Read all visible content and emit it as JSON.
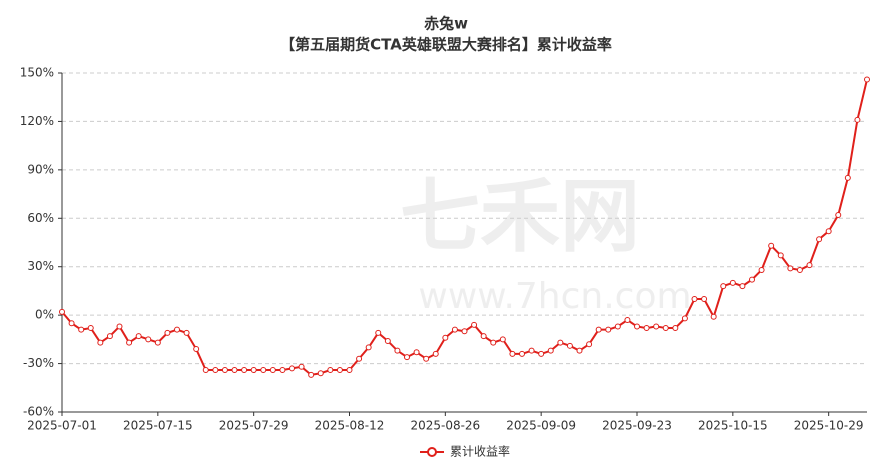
{
  "chart_data": {
    "type": "line",
    "title": "赤兔w",
    "subtitle": "【第五届期货CTA英雄联盟大赛排名】累计收益率",
    "watermark": [
      "七禾网",
      "www.7hcn.com"
    ],
    "categories": [
      "2025-07-01",
      null,
      null,
      null,
      null,
      null,
      null,
      null,
      null,
      null,
      "2025-07-15",
      null,
      null,
      null,
      null,
      null,
      null,
      null,
      null,
      null,
      "2025-07-29",
      null,
      null,
      null,
      null,
      null,
      null,
      null,
      null,
      null,
      "2025-08-12",
      null,
      null,
      null,
      null,
      null,
      null,
      null,
      null,
      null,
      "2025-08-26",
      null,
      null,
      null,
      null,
      null,
      null,
      null,
      null,
      null,
      "2025-09-09",
      null,
      null,
      null,
      null,
      null,
      null,
      null,
      null,
      null,
      "2025-09-23",
      null,
      null,
      null,
      null,
      null,
      null,
      null,
      null,
      null,
      "2025-10-15",
      null,
      null,
      null,
      null,
      null,
      null,
      null,
      null,
      null,
      "2025-10-29",
      null,
      null,
      null,
      null
    ],
    "series": [
      {
        "name": "累计收益率",
        "color": "#e0201b",
        "values": [
          2,
          -5,
          -9,
          -8,
          -17,
          -13,
          -7,
          -17,
          -13,
          -15,
          -17,
          -11,
          -9,
          -11,
          -21,
          -34,
          -34,
          -34,
          -34,
          -34,
          -34,
          -34,
          -34,
          -34,
          -33,
          -32,
          -37,
          -36,
          -34,
          -34,
          -34,
          -27,
          -20,
          -11,
          -16,
          -22,
          -26,
          -23,
          -27,
          -24,
          -14,
          -9,
          -10,
          -6,
          -13,
          -17,
          -15,
          -24,
          -24,
          -22,
          -24,
          -22,
          -17,
          -19,
          -22,
          -18,
          -9,
          -9,
          -7,
          -3,
          -7,
          -8,
          -7,
          -8,
          -8,
          -2,
          10,
          10,
          -1,
          18,
          20,
          18,
          22,
          28,
          43,
          37,
          29,
          28,
          31,
          47,
          52,
          62,
          85,
          121,
          146
        ]
      }
    ],
    "ylim": [
      -60,
      150
    ],
    "yticks": [
      {
        "value": -60,
        "label": "-60%"
      },
      {
        "value": -30,
        "label": "-30%"
      },
      {
        "value": 0,
        "label": "0%"
      },
      {
        "value": 30,
        "label": "30%"
      },
      {
        "value": 60,
        "label": "60%"
      },
      {
        "value": 90,
        "label": "90%"
      },
      {
        "value": 120,
        "label": "120%"
      },
      {
        "value": 150,
        "label": "150%"
      }
    ],
    "grid": true,
    "legend": "bottom"
  }
}
